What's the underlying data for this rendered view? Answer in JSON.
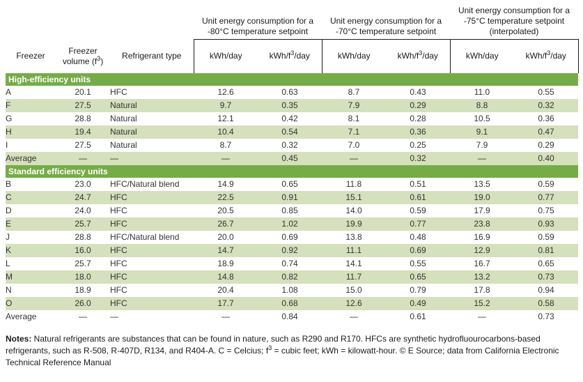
{
  "chart_data": {
    "type": "table",
    "column_groups": [
      {
        "lines": [
          "Unit energy consumption for a",
          "-80°C temperature setpoint"
        ]
      },
      {
        "lines": [
          "Unit energy consumption for a",
          "-70°C temperature setpoint"
        ]
      },
      {
        "lines": [
          "Unit energy consumption for a",
          "-75°C temperature setpoint",
          "(interpolated)"
        ]
      }
    ],
    "columns": {
      "freezer": "Freezer",
      "volume_line1": "Freezer",
      "volume_line2_pre": "volume (f",
      "volume_sup": "3",
      "volume_line2_post": ")",
      "refrigerant": "Refrigerant type",
      "kwh_day": "kWh/day",
      "kwh_f3_pre": "kWh/f",
      "kwh_f3_sup": "3",
      "kwh_f3_post": "/day"
    },
    "sections": [
      {
        "title": "High-efficiency units",
        "rows": [
          {
            "freezer": "A",
            "volume": "20.1",
            "refrigerant": "HFC",
            "values": [
              "12.6",
              "0.63",
              "8.7",
              "0.43",
              "11.0",
              "0.55"
            ]
          },
          {
            "freezer": "F",
            "volume": "27.5",
            "refrigerant": "Natural",
            "values": [
              "9.7",
              "0.35",
              "7.9",
              "0.29",
              "8.8",
              "0.32"
            ]
          },
          {
            "freezer": "G",
            "volume": "28.8",
            "refrigerant": "Natural",
            "values": [
              "12.1",
              "0.42",
              "8.1",
              "0.28",
              "10.5",
              "0.36"
            ]
          },
          {
            "freezer": "H",
            "volume": "19.4",
            "refrigerant": "Natural",
            "values": [
              "10.4",
              "0.54",
              "7.1",
              "0.36",
              "9.1",
              "0.47"
            ]
          },
          {
            "freezer": "I",
            "volume": "27.5",
            "refrigerant": "Natural",
            "values": [
              "8.7",
              "0.32",
              "7.0",
              "0.25",
              "7.9",
              "0.29"
            ]
          },
          {
            "freezer": "Average",
            "volume": "—",
            "refrigerant": "—",
            "values": [
              "—",
              "0.45",
              "—",
              "0.32",
              "—",
              "0.40"
            ]
          }
        ]
      },
      {
        "title": "Standard efficiency units",
        "rows": [
          {
            "freezer": "B",
            "volume": "23.0",
            "refrigerant": "HFC/Natural blend",
            "values": [
              "14.9",
              "0.65",
              "11.8",
              "0.51",
              "13.5",
              "0.59"
            ]
          },
          {
            "freezer": "C",
            "volume": "24.7",
            "refrigerant": "HFC",
            "values": [
              "22.5",
              "0.91",
              "15.1",
              "0.61",
              "19.0",
              "0.77"
            ]
          },
          {
            "freezer": "D",
            "volume": "24.0",
            "refrigerant": "HFC",
            "values": [
              "20.5",
              "0.85",
              "14.0",
              "0.59",
              "17.9",
              "0.75"
            ]
          },
          {
            "freezer": "E",
            "volume": "25.7",
            "refrigerant": "HFC",
            "values": [
              "26.7",
              "1.02",
              "19.9",
              "0.77",
              "23.8",
              "0.93"
            ]
          },
          {
            "freezer": "J",
            "volume": "28.8",
            "refrigerant": "HFC/Natural blend",
            "values": [
              "20.0",
              "0.69",
              "13.8",
              "0.48",
              "16.9",
              "0.59"
            ]
          },
          {
            "freezer": "K",
            "volume": "16.0",
            "refrigerant": "HFC",
            "values": [
              "14.7",
              "0.92",
              "11.1",
              "0.69",
              "12.9",
              "0.81"
            ]
          },
          {
            "freezer": "L",
            "volume": "25.7",
            "refrigerant": "HFC",
            "values": [
              "18.9",
              "0.74",
              "14.1",
              "0.55",
              "16.7",
              "0.65"
            ]
          },
          {
            "freezer": "M",
            "volume": "18.0",
            "refrigerant": "HFC",
            "values": [
              "14.8",
              "0.82",
              "11.7",
              "0.65",
              "13.2",
              "0.73"
            ]
          },
          {
            "freezer": "N",
            "volume": "18.9",
            "refrigerant": "HFC",
            "values": [
              "20.4",
              "1.08",
              "15.0",
              "0.79",
              "17.8",
              "0.94"
            ]
          },
          {
            "freezer": "O",
            "volume": "26.0",
            "refrigerant": "HFC",
            "values": [
              "17.7",
              "0.68",
              "12.6",
              "0.49",
              "15.2",
              "0.58"
            ]
          },
          {
            "freezer": "Average",
            "volume": "—",
            "refrigerant": "—",
            "values": [
              "—",
              "0.84",
              "—",
              "0.61",
              "—",
              "0.73"
            ]
          }
        ]
      }
    ],
    "colors": {
      "section_bar_green": "#76AC46",
      "row_alt_green": "#D5E0BC",
      "border_black": "#1a1a1a",
      "text": "#333333"
    }
  },
  "notes": {
    "label": "Notes:",
    "part1": " Natural refrigerants are substances that can be found in nature, such as R290 and R170. HFCs are synthetic hydrofluourocarbons-based refrigerants, such as R-508, R-407D, R134, and R404-A. C = Celcius; f",
    "sup": "3",
    "part2": " = cubic feet; kWh = kilowatt-hour. © E Source; data from California Electronic Technical Reference Manual"
  }
}
